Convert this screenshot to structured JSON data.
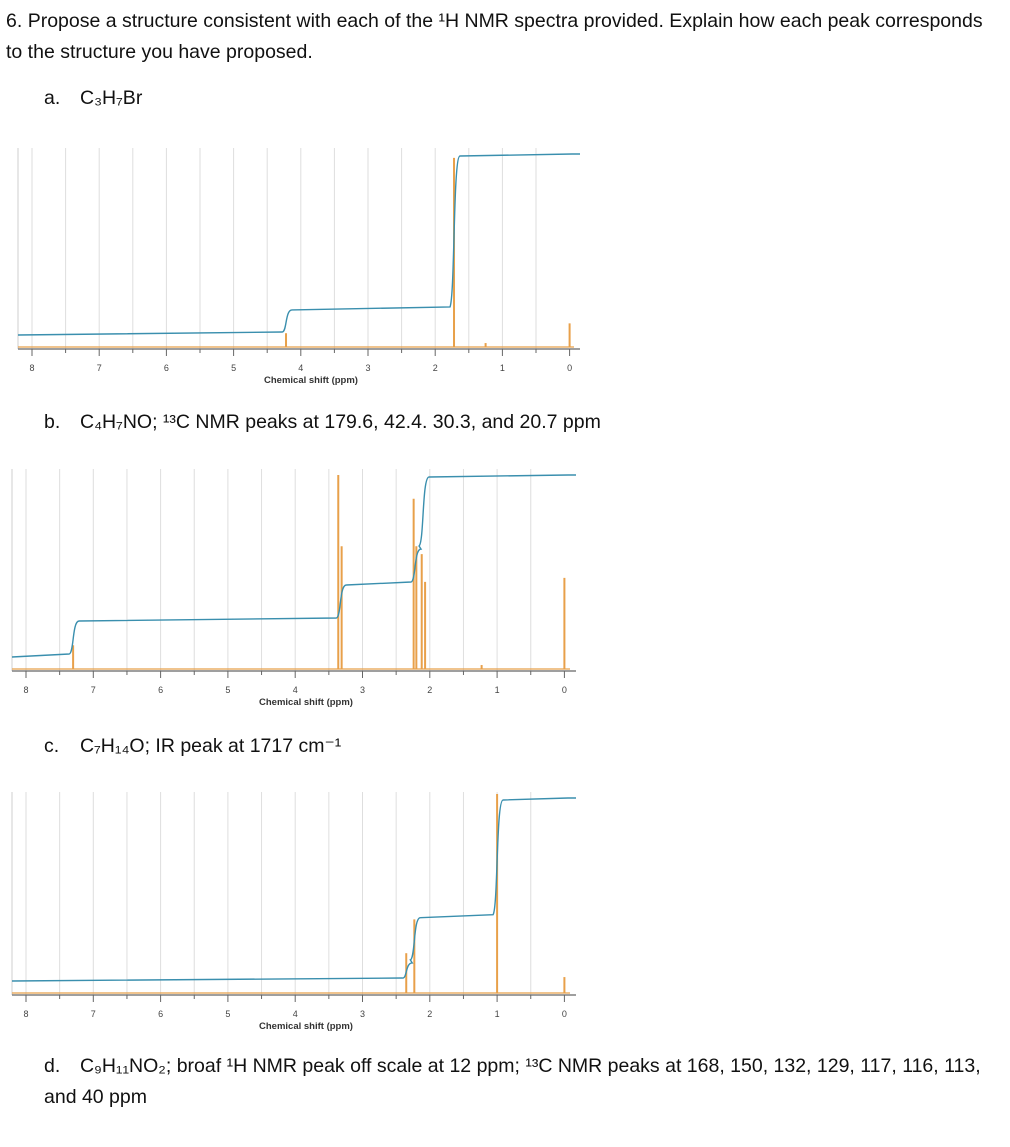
{
  "question": {
    "number": "6.",
    "text": "Propose a structure consistent with each of the ¹H NMR spectra provided. Explain how each peak corresponds to the structure you have proposed."
  },
  "parts": {
    "a": {
      "letter": "a.",
      "label": "C₃H₇Br"
    },
    "b": {
      "letter": "b.",
      "label": "C₄H₇NO; ¹³C NMR peaks at 179.6, 42.4. 30.3, and 20.7 ppm"
    },
    "c": {
      "letter": "c.",
      "label": "C₇H₁₄O; IR peak at 1717 cm⁻¹"
    },
    "d": {
      "letter": "d.",
      "label": "C₉H₁₁NO₂; broaf ¹H NMR peak off scale at 12 ppm; ¹³C NMR peaks at 168, 150, 132, 129, 117, 116, 113, and 40 ppm"
    }
  },
  "chart_data": [
    {
      "type": "line",
      "xlabel": "Chemical shift (ppm)",
      "xlim": [
        8,
        0
      ],
      "x_reversed": true,
      "xticks": [
        "8",
        "7",
        "6",
        "5",
        "4",
        "3",
        "2",
        "1",
        "0"
      ],
      "grid": true,
      "colors": {
        "spectrum": "#e8a04a",
        "integral": "#3a8fae"
      },
      "peaks": [
        {
          "ppm": 4.22,
          "height": 0.07
        },
        {
          "ppm": 1.72,
          "height": 0.96
        },
        {
          "ppm": 1.25,
          "height": 0.02
        },
        {
          "ppm": 0.0,
          "height": 0.12
        }
      ],
      "integral_steps": [
        {
          "ppm": 4.22,
          "fraction": 0.14
        },
        {
          "ppm": 1.72,
          "fraction": 0.86
        }
      ]
    },
    {
      "type": "line",
      "xlabel": "Chemical shift (ppm)",
      "xlim": [
        8,
        0
      ],
      "x_reversed": true,
      "xticks": [
        "8",
        "7",
        "6",
        "5",
        "4",
        "3",
        "2",
        "1",
        "0"
      ],
      "grid": true,
      "colors": {
        "spectrum": "#e8a04a",
        "integral": "#3a8fae"
      },
      "peaks": [
        {
          "ppm": 7.3,
          "height": 0.12
        },
        {
          "ppm": 3.36,
          "height": 0.98
        },
        {
          "ppm": 3.31,
          "height": 0.62
        },
        {
          "ppm": 2.24,
          "height": 0.86
        },
        {
          "ppm": 2.2,
          "height": 0.62
        },
        {
          "ppm": 2.12,
          "height": 0.58
        },
        {
          "ppm": 2.07,
          "height": 0.44
        },
        {
          "ppm": 1.23,
          "height": 0.02
        },
        {
          "ppm": 0.0,
          "height": 0.46
        }
      ],
      "integral_steps": [
        {
          "ppm": 7.3,
          "fraction": 0.2
        },
        {
          "ppm": 3.33,
          "fraction": 0.2
        },
        {
          "ppm": 2.22,
          "fraction": 0.2
        },
        {
          "ppm": 2.1,
          "fraction": 0.4
        }
      ]
    },
    {
      "type": "line",
      "xlabel": "Chemical shift (ppm)",
      "xlim": [
        8,
        0
      ],
      "x_reversed": true,
      "xticks": [
        "8",
        "7",
        "6",
        "5",
        "4",
        "3",
        "2",
        "1",
        "0"
      ],
      "grid": true,
      "colors": {
        "spectrum": "#e8a04a",
        "integral": "#3a8fae"
      },
      "peaks": [
        {
          "ppm": 2.35,
          "height": 0.2
        },
        {
          "ppm": 2.23,
          "height": 0.37
        },
        {
          "ppm": 1.0,
          "height": 1.0
        },
        {
          "ppm": 0.0,
          "height": 0.08
        }
      ],
      "integral_steps": [
        {
          "ppm": 2.35,
          "fraction": 0.1
        },
        {
          "ppm": 2.23,
          "fraction": 0.25
        },
        {
          "ppm": 1.0,
          "fraction": 0.65
        }
      ]
    }
  ]
}
